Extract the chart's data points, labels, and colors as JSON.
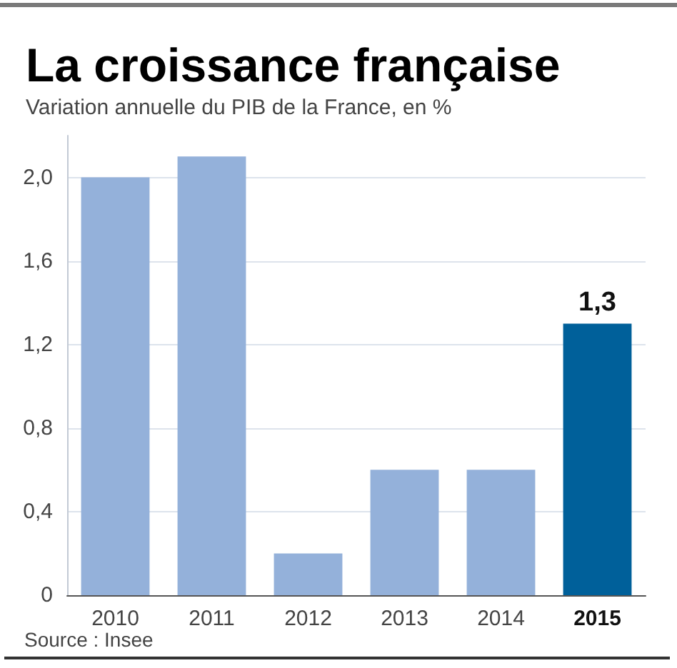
{
  "chart_data": {
    "type": "bar",
    "title": "La croissance française",
    "subtitle": "Variation annuelle du PIB de la France, en %",
    "categories": [
      "2010",
      "2011",
      "2012",
      "2013",
      "2014",
      "2015"
    ],
    "values": [
      2.0,
      2.1,
      0.2,
      0.6,
      0.6,
      1.3
    ],
    "colors": [
      "#94b1da",
      "#94b1da",
      "#94b1da",
      "#94b1da",
      "#94b1da",
      "#00609a"
    ],
    "value_labels": [
      null,
      null,
      null,
      null,
      null,
      "1,3"
    ],
    "ylim": [
      0,
      2.2
    ],
    "yticks": [
      0,
      {
        "value": 0.4,
        "label": "0,4"
      },
      {
        "value": 0.8,
        "label": "0,8"
      },
      {
        "value": 1.2,
        "label": "1,2"
      },
      {
        "value": 1.6,
        "label": "1,6"
      },
      {
        "value": 2.0,
        "label": "2,0"
      }
    ],
    "grid": "y",
    "annotations": [
      "Source : Insee"
    ]
  }
}
